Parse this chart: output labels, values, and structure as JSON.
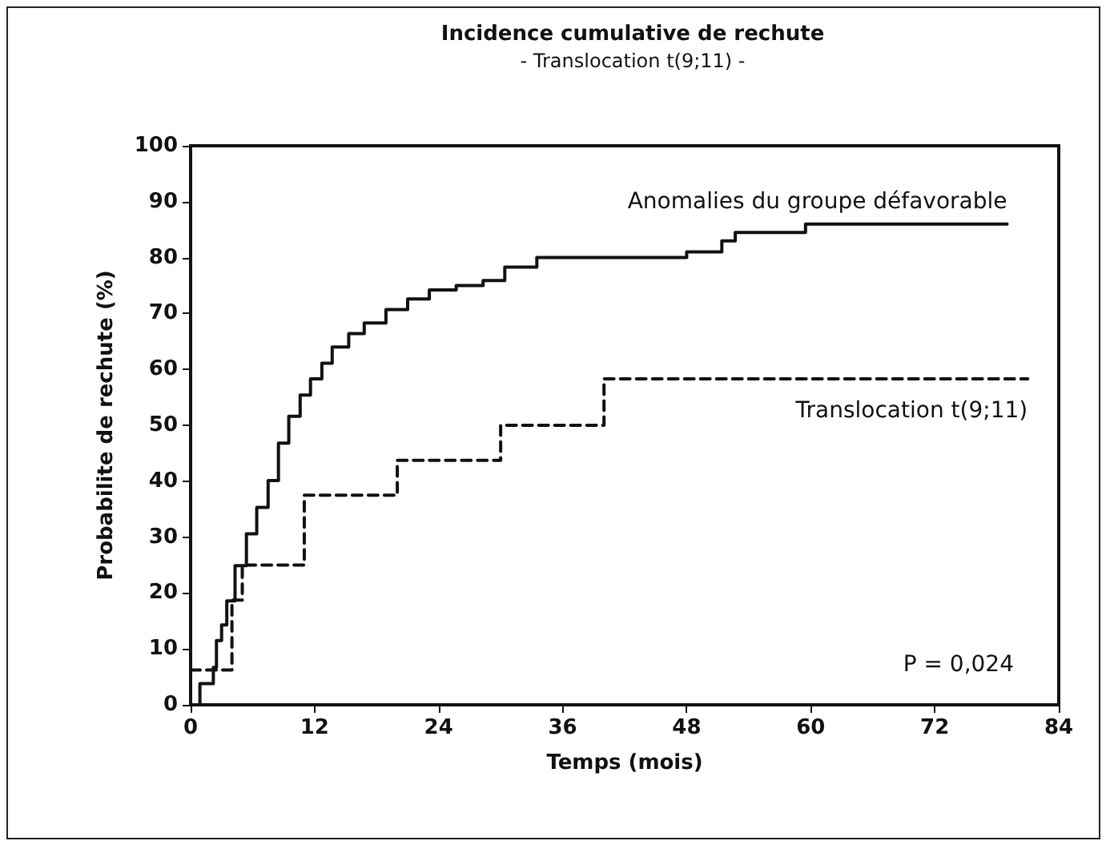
{
  "chart_data": {
    "type": "step",
    "title": "Incidence cumulative de rechute",
    "subtitle": "- Translocation t(9;11) -",
    "xlabel": "Temps (mois)",
    "ylabel": "Probabilite de rechute (%)",
    "xlim": [
      0,
      84
    ],
    "xticks": [
      0,
      12,
      24,
      36,
      48,
      60,
      72,
      84
    ],
    "ylim": [
      0,
      100
    ],
    "yticks": [
      0,
      10,
      20,
      30,
      40,
      50,
      60,
      70,
      80,
      90,
      100
    ],
    "grid": false,
    "legend": false,
    "marker": "none",
    "annotations": [
      "P = 0,024"
    ],
    "series": [
      {
        "name": "Anomalies du groupe défavorable",
        "color": "#111111",
        "line_style": "solid",
        "x": [
          0,
          0.9,
          2.2,
          2.5,
          3.0,
          3.5,
          4.3,
          5.4,
          6.4,
          7.5,
          8.5,
          9.5,
          10.6,
          11.6,
          12.7,
          13.7,
          15.3,
          16.8,
          18.9,
          21.0,
          23.1,
          25.7,
          28.3,
          30.4,
          33.5,
          48,
          51.4,
          52.7,
          59.5,
          79
        ],
        "values": [
          0,
          3.8,
          6.7,
          11.5,
          14.3,
          18.6,
          24.9,
          30.6,
          35.3,
          40.1,
          46.8,
          51.6,
          55.4,
          58.3,
          61.1,
          64,
          66.4,
          68.3,
          70.7,
          72.6,
          74.2,
          75,
          75.9,
          78.3,
          80,
          81,
          83,
          84.5,
          86,
          86
        ]
      },
      {
        "name": "Translocation t(9;11)",
        "color": "#111111",
        "line_style": "dashed",
        "x": [
          0,
          4,
          5,
          11,
          20,
          30,
          40,
          81
        ],
        "values": [
          6.25,
          18.75,
          25,
          37.5,
          43.75,
          50,
          58.3,
          58.3
        ]
      }
    ]
  }
}
